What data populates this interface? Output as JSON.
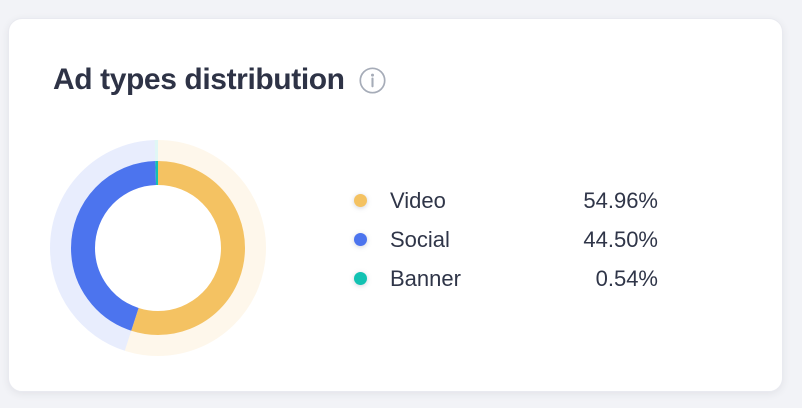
{
  "card": {
    "title": "Ad types distribution"
  },
  "icons": {
    "info": "info-icon"
  },
  "chart_data": {
    "type": "pie",
    "subtype": "donut",
    "title": "Ad types distribution",
    "total": 100,
    "start_angle_deg": 0,
    "direction": "clockwise",
    "legend_position": "right",
    "series": [
      {
        "name": "Video",
        "value": 54.96,
        "label": "54.96%",
        "color": "#F4C262"
      },
      {
        "name": "Social",
        "value": 44.5,
        "label": "44.50%",
        "color": "#4C74EE"
      },
      {
        "name": "Banner",
        "value": 0.54,
        "label": "0.54%",
        "color": "#12C2B2"
      }
    ],
    "geometry": {
      "ring_mid_radius": 75,
      "ring_width": 24,
      "halo_mid_radius": 97.5,
      "halo_width": 21,
      "halo_opacity": 0.13
    }
  },
  "colors": {
    "background": "#f2f3f7",
    "card_background": "#ffffff",
    "card_border": "#e9eaf0",
    "title_text": "#2e3346",
    "legend_text": "#2f3548",
    "info_icon": "#a6acb8"
  }
}
